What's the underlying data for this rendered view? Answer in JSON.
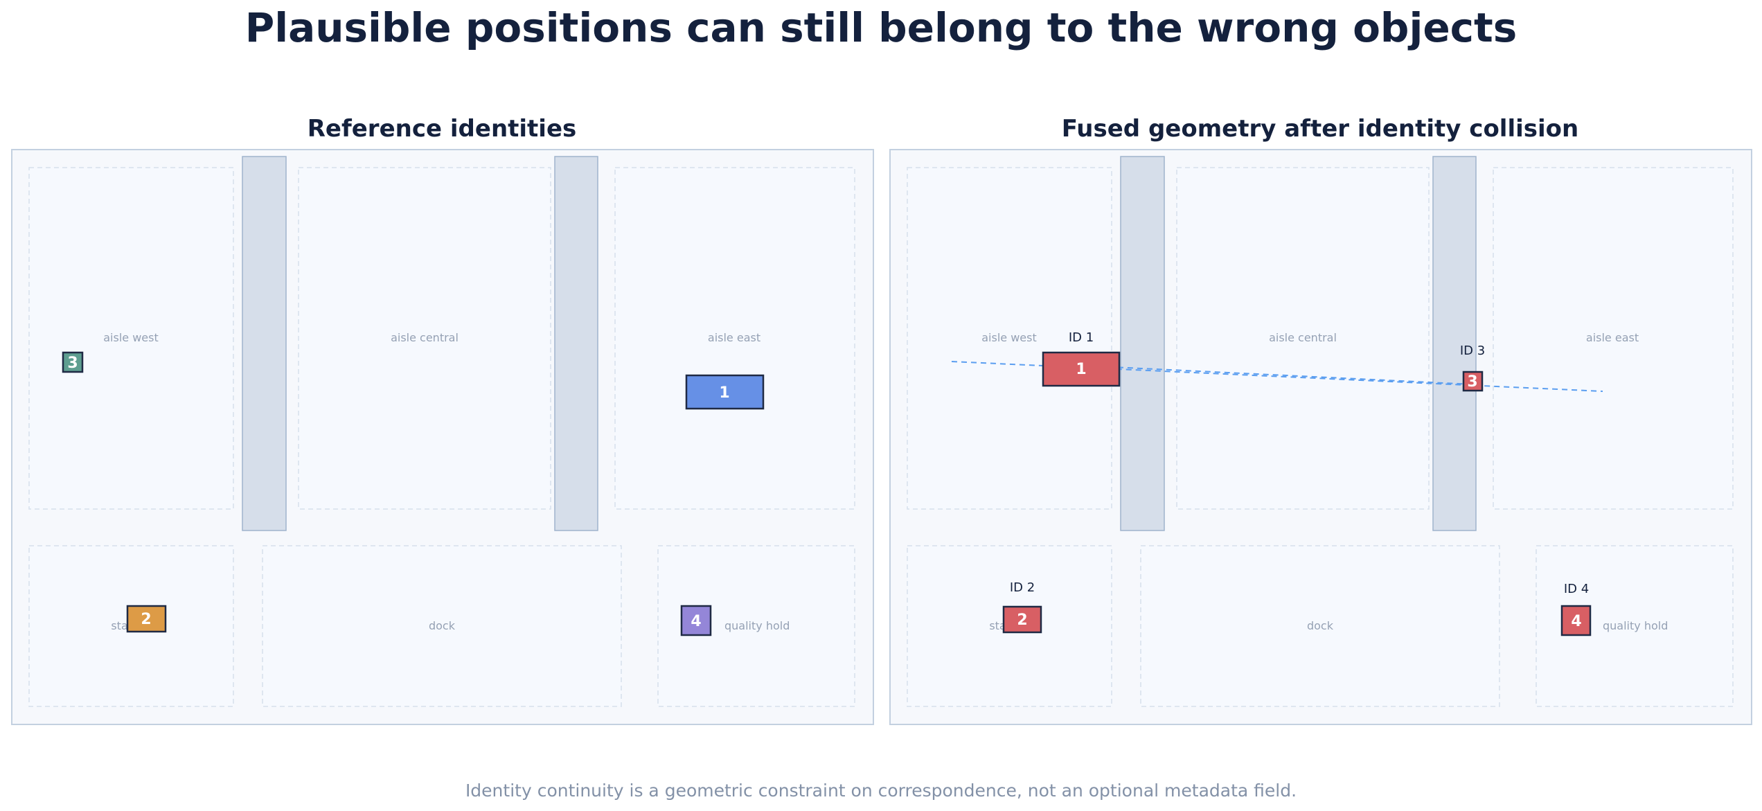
{
  "title": "Plausible positions can still belong to the wrong objects",
  "footer": "Identity continuity is a geometric constraint on correspondence, not an optional metadata field.",
  "zones": {
    "aisle_west": "aisle west",
    "aisle_central": "aisle central",
    "aisle_east": "aisle east",
    "staging": "staging",
    "dock": "dock",
    "quality_hold": "quality hold"
  },
  "panels": {
    "reference": {
      "title": "Reference identities",
      "objects": [
        {
          "num": "1",
          "color": "#6690e6"
        },
        {
          "num": "2",
          "color": "#dd9b46"
        },
        {
          "num": "3",
          "color": "#5e9e90"
        },
        {
          "num": "4",
          "color": "#9486d8"
        }
      ]
    },
    "fused": {
      "title": "Fused geometry after identity collision",
      "objects": [
        {
          "num": "1",
          "id_label": "ID 1",
          "color": "#d85f64"
        },
        {
          "num": "2",
          "id_label": "ID 2",
          "color": "#d85f64"
        },
        {
          "num": "3",
          "id_label": "ID 3",
          "color": "#d85f64"
        },
        {
          "num": "4",
          "id_label": "ID 4",
          "color": "#d85f64"
        }
      ],
      "track_color": "#5b9ef0"
    }
  }
}
